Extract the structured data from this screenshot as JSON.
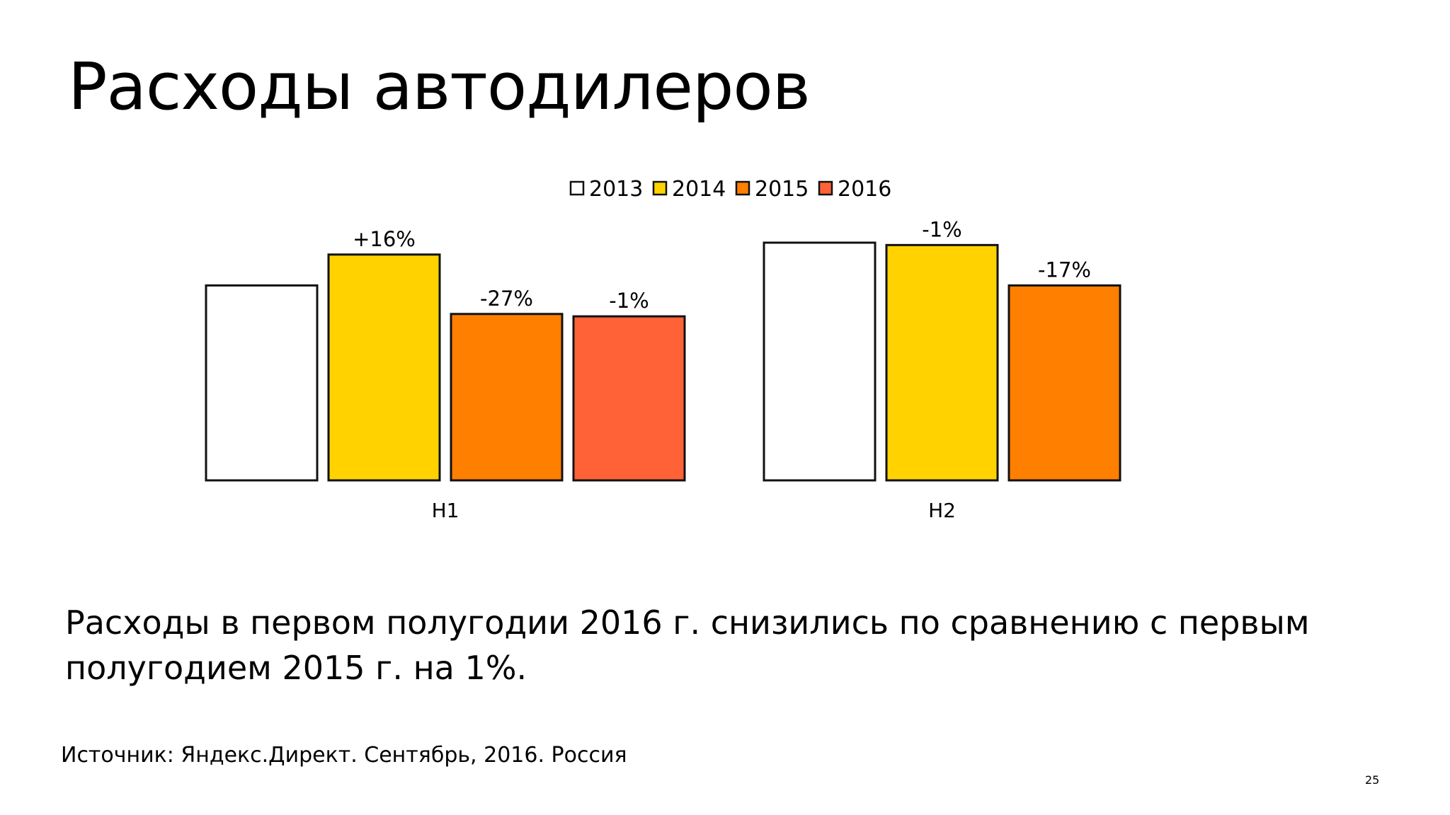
{
  "slide": {
    "title": "Расходы автодилеров",
    "summary": "Расходы в первом полугодии 2016 г. снизились по сравнению с первым полугодием 2015 г. на 1%.",
    "source": "Источник: Яндекс.Директ. Сентябрь, 2016. Россия",
    "page_number": "25"
  },
  "chart_data": {
    "type": "bar",
    "title": "",
    "xlabel": "",
    "ylabel": "",
    "categories": [
      "H1",
      "H2"
    ],
    "legend_position": "top",
    "grid": false,
    "ylim": [
      0,
      100
    ],
    "series": [
      {
        "name": "2013",
        "color": "#ffffff",
        "values": [
          82,
          100
        ],
        "labels": [
          "",
          ""
        ]
      },
      {
        "name": "2014",
        "color": "#ffd200",
        "values": [
          95,
          99
        ],
        "labels": [
          "+16%",
          "-1%"
        ]
      },
      {
        "name": "2015",
        "color": "#ff7f00",
        "values": [
          70,
          82
        ],
        "labels": [
          "-27%",
          "-17%"
        ]
      },
      {
        "name": "2016",
        "color": "#ff6236",
        "values": [
          69,
          null
        ],
        "labels": [
          "-1%",
          ""
        ]
      }
    ]
  }
}
